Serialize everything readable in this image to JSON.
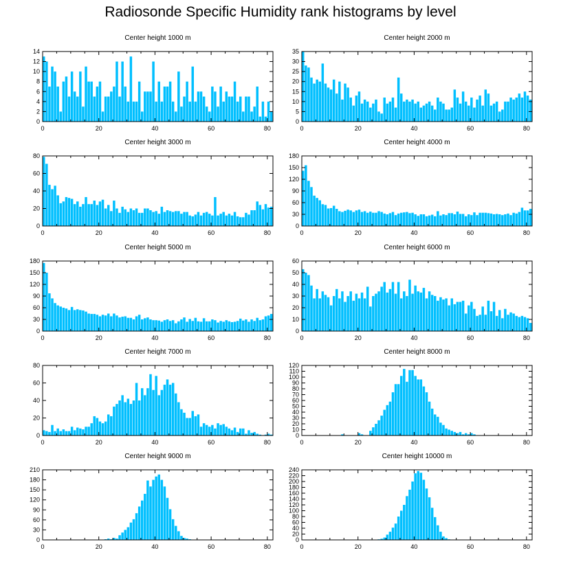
{
  "title": "Radiosonde Specific Humidity rank histograms by level",
  "colors": {
    "bar": "#00bfff",
    "axis": "#000000"
  },
  "chart_data": [
    {
      "type": "bar",
      "title": "Center height 1000 m",
      "xlim": [
        0,
        82
      ],
      "ylim": [
        0,
        14
      ],
      "yticks": [
        0,
        2,
        4,
        6,
        8,
        10,
        12,
        14
      ],
      "xticks": [
        0,
        20,
        40,
        60,
        80
      ],
      "values": [
        13,
        12,
        7,
        11,
        10,
        7,
        2,
        8,
        9,
        5,
        10,
        6,
        5,
        10,
        3,
        11,
        8,
        8,
        5,
        7,
        8,
        2,
        5,
        5,
        6,
        7,
        12,
        5,
        12,
        7,
        4,
        13,
        4,
        4,
        8,
        2,
        6,
        6,
        6,
        12,
        4,
        8,
        4,
        7,
        7,
        8,
        4,
        2,
        10,
        3,
        5,
        8,
        4,
        11,
        4,
        6,
        6,
        5,
        3,
        2,
        7,
        6,
        3,
        7,
        4,
        6,
        5,
        5,
        8,
        4,
        5,
        2,
        5,
        5,
        2,
        3,
        7,
        1,
        4,
        1,
        4,
        2
      ]
    },
    {
      "type": "bar",
      "title": "Center height 2000 m",
      "xlim": [
        0,
        82
      ],
      "ylim": [
        0,
        35
      ],
      "yticks": [
        0,
        5,
        10,
        15,
        20,
        25,
        30,
        35
      ],
      "xticks": [
        0,
        20,
        40,
        60,
        80
      ],
      "values": [
        35,
        28,
        27,
        22,
        19,
        21,
        20,
        29,
        19,
        17,
        16,
        21,
        14,
        20,
        11,
        19,
        17,
        12,
        8,
        13,
        15,
        9,
        11,
        10,
        7,
        9,
        11,
        5,
        4,
        12,
        9,
        10,
        12,
        7,
        22,
        14,
        10,
        11,
        10,
        11,
        9,
        10,
        7,
        8,
        9,
        10,
        8,
        6,
        12,
        10,
        9,
        6,
        6,
        7,
        16,
        12,
        9,
        15,
        10,
        8,
        12,
        7,
        11,
        13,
        8,
        16,
        14,
        8,
        9,
        10,
        5,
        6,
        10,
        10,
        12,
        11,
        12,
        14,
        12,
        15,
        13,
        11
      ]
    },
    {
      "type": "bar",
      "title": "Center height 3000 m",
      "xlim": [
        0,
        82
      ],
      "ylim": [
        0,
        80
      ],
      "yticks": [
        0,
        20,
        40,
        60,
        80
      ],
      "xticks": [
        0,
        20,
        40,
        60,
        80
      ],
      "values": [
        79,
        71,
        47,
        42,
        46,
        35,
        26,
        28,
        33,
        32,
        31,
        25,
        28,
        22,
        25,
        33,
        25,
        25,
        29,
        24,
        28,
        30,
        20,
        24,
        17,
        29,
        20,
        15,
        22,
        19,
        16,
        20,
        18,
        20,
        15,
        15,
        20,
        20,
        18,
        16,
        17,
        14,
        22,
        16,
        18,
        17,
        16,
        17,
        17,
        14,
        16,
        16,
        12,
        11,
        13,
        16,
        12,
        15,
        16,
        14,
        12,
        33,
        12,
        14,
        16,
        12,
        14,
        12,
        16,
        11,
        10,
        10,
        15,
        13,
        18,
        18,
        28,
        24,
        19,
        25,
        21,
        22
      ]
    },
    {
      "type": "bar",
      "title": "Center height 4000 m",
      "xlim": [
        0,
        82
      ],
      "ylim": [
        0,
        180
      ],
      "yticks": [
        0,
        30,
        60,
        90,
        120,
        150,
        180
      ],
      "xticks": [
        0,
        20,
        40,
        60,
        80
      ],
      "values": [
        142,
        156,
        116,
        100,
        78,
        72,
        66,
        56,
        54,
        45,
        46,
        52,
        44,
        38,
        36,
        39,
        42,
        40,
        36,
        40,
        42,
        36,
        38,
        34,
        37,
        34,
        34,
        38,
        36,
        32,
        30,
        33,
        36,
        28,
        32,
        34,
        35,
        36,
        33,
        34,
        30,
        26,
        30,
        30,
        25,
        27,
        29,
        25,
        38,
        27,
        30,
        28,
        33,
        33,
        30,
        37,
        31,
        31,
        25,
        30,
        28,
        35,
        28,
        34,
        34,
        34,
        33,
        32,
        30,
        31,
        30,
        28,
        30,
        32,
        28,
        34,
        32,
        36,
        47,
        40,
        40,
        44
      ]
    },
    {
      "type": "bar",
      "title": "Center height 5000 m",
      "xlim": [
        0,
        82
      ],
      "ylim": [
        0,
        180
      ],
      "yticks": [
        0,
        30,
        60,
        90,
        120,
        150,
        180
      ],
      "xticks": [
        0,
        20,
        40,
        60,
        80
      ],
      "values": [
        175,
        150,
        97,
        84,
        72,
        66,
        63,
        60,
        58,
        54,
        62,
        54,
        56,
        54,
        53,
        50,
        45,
        44,
        44,
        42,
        38,
        42,
        40,
        45,
        38,
        45,
        40,
        35,
        37,
        38,
        34,
        34,
        30,
        38,
        42,
        30,
        33,
        35,
        30,
        28,
        28,
        27,
        24,
        28,
        30,
        26,
        28,
        20,
        25,
        30,
        35,
        24,
        31,
        26,
        34,
        25,
        24,
        33,
        25,
        25,
        30,
        28,
        22,
        26,
        24,
        28,
        25,
        23,
        24,
        26,
        32,
        27,
        30,
        24,
        30,
        26,
        34,
        28,
        30,
        38,
        40,
        44
      ]
    },
    {
      "type": "bar",
      "title": "Center height 6000 m",
      "xlim": [
        0,
        82
      ],
      "ylim": [
        0,
        60
      ],
      "yticks": [
        0,
        10,
        20,
        30,
        40,
        50,
        60
      ],
      "xticks": [
        0,
        20,
        40,
        60,
        80
      ],
      "values": [
        53,
        50,
        48,
        39,
        28,
        36,
        28,
        34,
        31,
        29,
        22,
        30,
        36,
        28,
        34,
        25,
        30,
        34,
        26,
        32,
        28,
        33,
        28,
        38,
        21,
        30,
        32,
        34,
        38,
        42,
        33,
        36,
        42,
        32,
        42,
        28,
        34,
        30,
        44,
        32,
        39,
        34,
        33,
        37,
        28,
        34,
        31,
        30,
        26,
        29,
        27,
        28,
        22,
        28,
        23,
        25,
        25,
        26,
        15,
        22,
        25,
        19,
        13,
        14,
        21,
        14,
        26,
        17,
        25,
        13,
        18,
        11,
        19,
        14,
        16,
        15,
        13,
        12,
        13,
        12,
        11,
        7
      ]
    },
    {
      "type": "bar",
      "title": "Center height 7000 m",
      "xlim": [
        0,
        82
      ],
      "ylim": [
        0,
        80
      ],
      "yticks": [
        0,
        20,
        40,
        60,
        80
      ],
      "xticks": [
        0,
        20,
        40,
        60,
        80
      ],
      "values": [
        6,
        5,
        4,
        12,
        5,
        8,
        5,
        7,
        5,
        5,
        10,
        6,
        9,
        8,
        7,
        10,
        10,
        14,
        22,
        20,
        16,
        14,
        16,
        24,
        22,
        33,
        36,
        40,
        46,
        38,
        42,
        36,
        40,
        60,
        40,
        54,
        46,
        54,
        70,
        52,
        68,
        46,
        52,
        58,
        64,
        58,
        60,
        48,
        38,
        30,
        26,
        20,
        20,
        28,
        22,
        24,
        10,
        14,
        12,
        10,
        12,
        8,
        14,
        12,
        13,
        10,
        8,
        6,
        9,
        4,
        8,
        8,
        2,
        6,
        3,
        4,
        2,
        1,
        0,
        1,
        2,
        1
      ]
    },
    {
      "type": "bar",
      "title": "Center height 8000 m",
      "xlim": [
        0,
        82
      ],
      "ylim": [
        0,
        120
      ],
      "yticks": [
        0,
        10,
        20,
        30,
        40,
        50,
        60,
        70,
        80,
        90,
        100,
        110,
        120
      ],
      "xticks": [
        0,
        20,
        40,
        60,
        80
      ],
      "values": [
        0,
        0,
        0,
        0,
        0,
        0,
        0,
        0,
        0,
        0,
        0,
        0,
        0,
        0,
        2,
        0,
        0,
        0,
        0,
        0,
        4,
        2,
        0,
        0,
        8,
        14,
        20,
        26,
        34,
        44,
        52,
        58,
        74,
        88,
        88,
        102,
        114,
        92,
        112,
        112,
        102,
        96,
        96,
        84,
        74,
        58,
        46,
        36,
        32,
        22,
        18,
        12,
        10,
        8,
        6,
        4,
        6,
        2,
        4,
        2,
        4,
        2,
        0,
        0,
        0,
        0,
        0,
        0,
        0,
        0,
        0,
        0,
        0,
        0,
        0,
        0,
        0,
        0,
        0,
        0,
        0,
        0
      ]
    },
    {
      "type": "bar",
      "title": "Center height 9000 m",
      "xlim": [
        0,
        82
      ],
      "ylim": [
        0,
        210
      ],
      "yticks": [
        0,
        30,
        60,
        90,
        120,
        150,
        180,
        210
      ],
      "xticks": [
        0,
        20,
        40,
        60,
        80
      ],
      "values": [
        0,
        0,
        0,
        0,
        0,
        0,
        0,
        0,
        0,
        0,
        0,
        0,
        0,
        0,
        0,
        0,
        0,
        0,
        0,
        0,
        0,
        0,
        2,
        4,
        2,
        6,
        4,
        14,
        22,
        30,
        38,
        52,
        62,
        80,
        100,
        118,
        138,
        178,
        160,
        180,
        190,
        196,
        180,
        160,
        126,
        92,
        62,
        42,
        26,
        12,
        6,
        4,
        2,
        0,
        0,
        0,
        0,
        0,
        0,
        0,
        0,
        0,
        0,
        0,
        0,
        0,
        0,
        0,
        0,
        0,
        0,
        0,
        0,
        0,
        0,
        0,
        0,
        0,
        0,
        0,
        0,
        0
      ]
    },
    {
      "type": "bar",
      "title": "Center height 10000 m",
      "xlim": [
        0,
        82
      ],
      "ylim": [
        0,
        240
      ],
      "yticks": [
        0,
        20,
        40,
        60,
        80,
        100,
        120,
        140,
        160,
        180,
        200,
        220,
        240
      ],
      "xticks": [
        0,
        20,
        40,
        60,
        80
      ],
      "values": [
        0,
        0,
        0,
        0,
        0,
        0,
        0,
        0,
        0,
        0,
        0,
        0,
        0,
        0,
        0,
        0,
        0,
        0,
        0,
        0,
        0,
        0,
        0,
        0,
        0,
        0,
        0,
        2,
        4,
        8,
        18,
        28,
        42,
        56,
        80,
        100,
        120,
        150,
        172,
        200,
        228,
        236,
        230,
        206,
        176,
        146,
        110,
        78,
        50,
        28,
        12,
        6,
        2,
        0,
        0,
        0,
        0,
        0,
        0,
        0,
        0,
        0,
        0,
        0,
        0,
        0,
        0,
        0,
        0,
        0,
        0,
        0,
        0,
        0,
        0,
        0,
        0,
        0,
        0,
        0,
        0,
        0
      ]
    }
  ]
}
